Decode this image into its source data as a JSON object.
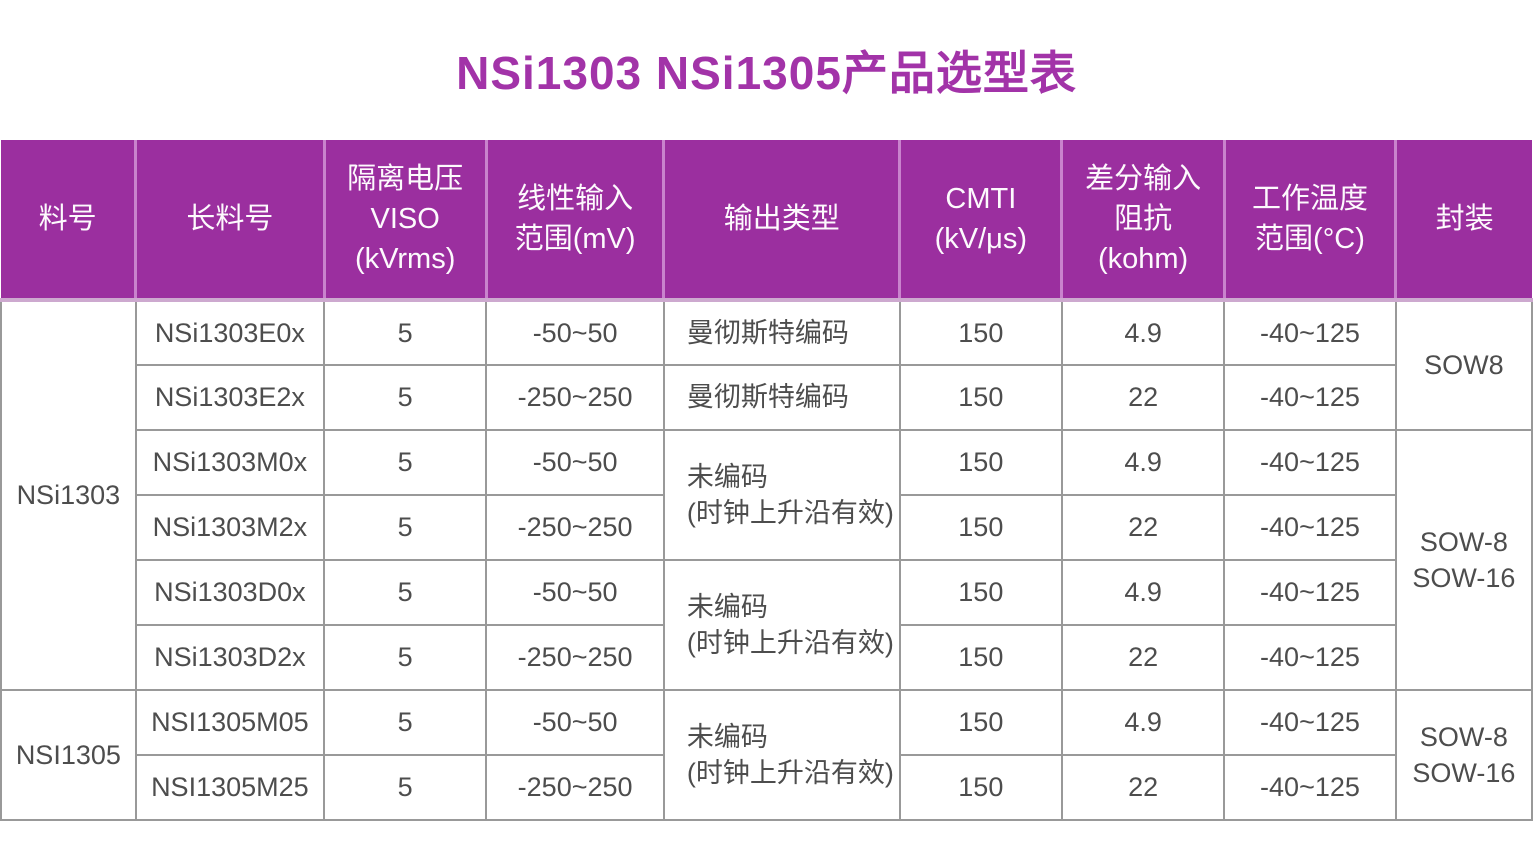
{
  "title": "NSi1303 NSi1305产品选型表",
  "colors": {
    "title_color": "#A233A8",
    "header_bg": "#9B2F9F",
    "header_text": "#FDFAFD",
    "header_divider": "#C983CD",
    "body_border": "#999999",
    "body_text": "#4D4D4D"
  },
  "table": {
    "headers": [
      "料号",
      "长料号",
      "隔离电压\nVISO\n(kVrms)",
      "线性输入\n范围(mV)",
      "输出类型",
      "CMTI\n(kV/μs)",
      "差分输入\n阻抗\n(kohm)",
      "工作温度\n范围(°C)",
      "封装"
    ],
    "output_types": {
      "manchester": "曼彻斯特编码",
      "uncoded": "未编码\n(时钟上升沿有效)"
    },
    "packages": {
      "sow8": "SOW8",
      "sow8_16": "SOW-8\nSOW-16"
    },
    "groups": [
      {
        "part": "NSi1303",
        "rows": [
          {
            "long_part": "NSi1303E0x",
            "viso": "5",
            "input_range": "-50~50",
            "cmti": "150",
            "impedance": "4.9",
            "temp": "-40~125"
          },
          {
            "long_part": "NSi1303E2x",
            "viso": "5",
            "input_range": "-250~250",
            "cmti": "150",
            "impedance": "22",
            "temp": "-40~125"
          },
          {
            "long_part": "NSi1303M0x",
            "viso": "5",
            "input_range": "-50~50",
            "cmti": "150",
            "impedance": "4.9",
            "temp": "-40~125"
          },
          {
            "long_part": "NSi1303M2x",
            "viso": "5",
            "input_range": "-250~250",
            "cmti": "150",
            "impedance": "22",
            "temp": "-40~125"
          },
          {
            "long_part": "NSi1303D0x",
            "viso": "5",
            "input_range": "-50~50",
            "cmti": "150",
            "impedance": "4.9",
            "temp": "-40~125"
          },
          {
            "long_part": "NSi1303D2x",
            "viso": "5",
            "input_range": "-250~250",
            "cmti": "150",
            "impedance": "22",
            "temp": "-40~125"
          }
        ]
      },
      {
        "part": "NSI1305",
        "rows": [
          {
            "long_part": "NSI1305M05",
            "viso": "5",
            "input_range": "-50~50",
            "cmti": "150",
            "impedance": "4.9",
            "temp": "-40~125"
          },
          {
            "long_part": "NSI1305M25",
            "viso": "5",
            "input_range": "-250~250",
            "cmti": "150",
            "impedance": "22",
            "temp": "-40~125"
          }
        ]
      }
    ]
  }
}
